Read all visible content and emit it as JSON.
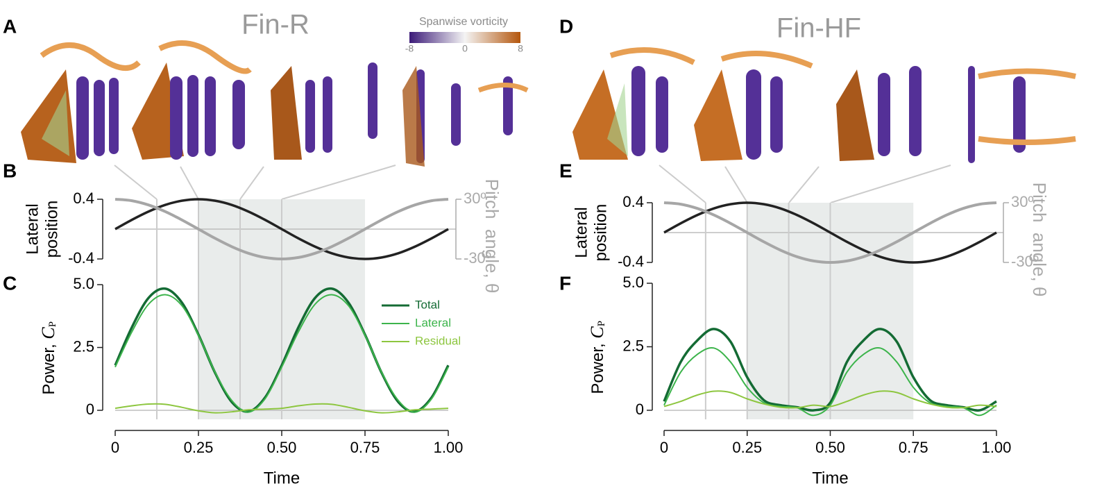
{
  "figure": {
    "panel_labels": [
      "A",
      "B",
      "C",
      "D",
      "E",
      "F"
    ],
    "titles": [
      "Fin-R",
      "Fin-HF"
    ],
    "colorbar": {
      "title": "Spanwise vorticity",
      "ticks": [
        -8,
        0,
        8
      ],
      "colors": [
        "#3b1a78",
        "#f4f4f4",
        "#b4560c"
      ]
    }
  },
  "chart_data": [
    {
      "type": "line",
      "x": [
        0,
        0.05,
        0.1,
        0.15,
        0.2,
        0.25,
        0.3,
        0.35,
        0.4,
        0.45,
        0.5,
        0.55,
        0.6,
        0.65,
        0.7,
        0.75,
        0.8,
        0.85,
        0.9,
        0.95,
        1
      ],
      "xlim": [
        0,
        1
      ],
      "ylabel": [
        "Lateral",
        "position"
      ],
      "y2label": "Pitch  angle, θ",
      "ylim": [
        -0.4,
        0.4
      ],
      "yticks": [
        0.4,
        -0.4
      ],
      "y2lim": [
        -30,
        30
      ],
      "y2ticks": [
        {
          "value": 30,
          "label": "30º"
        },
        {
          "value": -30,
          "label": "-30º"
        }
      ],
      "zero_line": true,
      "highlight_x": [
        0.25,
        0.75
      ],
      "vlines": [
        0.125,
        0.25,
        0.375,
        0.5
      ],
      "series": [
        {
          "color": "#222222",
          "values": [
            0,
            0.124,
            0.235,
            0.324,
            0.38,
            0.4,
            0.38,
            0.324,
            0.235,
            0.124,
            0,
            -0.124,
            -0.235,
            -0.324,
            -0.38,
            -0.4,
            -0.38,
            -0.324,
            -0.235,
            -0.124,
            0
          ]
        },
        {
          "color": "#a6a6a6",
          "axis": "y2",
          "values": [
            30,
            28.53,
            24.27,
            17.63,
            9.27,
            0,
            -9.27,
            -17.63,
            -24.27,
            -28.53,
            -30,
            -28.53,
            -24.27,
            -17.63,
            -9.27,
            0,
            9.27,
            17.63,
            24.27,
            28.53,
            30
          ]
        }
      ]
    },
    {
      "type": "line",
      "x": [
        0,
        0.05,
        0.1,
        0.15,
        0.2,
        0.25,
        0.3,
        0.35,
        0.4,
        0.45,
        0.5,
        0.55,
        0.6,
        0.65,
        0.7,
        0.75,
        0.8,
        0.85,
        0.9,
        0.95,
        1
      ],
      "xlabel": "Time",
      "xlim": [
        0,
        1
      ],
      "xticks": [
        0,
        0.25,
        {
          "value": 0.5,
          "label": "0.50"
        },
        0.75,
        {
          "value": 1,
          "label": "1.00"
        }
      ],
      "ylabel": [
        "Power, ",
        "C",
        "P"
      ],
      "ylim": [
        -0.4,
        5
      ],
      "yticks": [
        0,
        2.5,
        {
          "value": 5,
          "label": "5.0"
        }
      ],
      "zero_line": true,
      "highlight_x": [
        0.25,
        0.75
      ],
      "vlines": [
        0.125,
        0.25,
        0.375,
        0.5
      ],
      "legend": "upper right",
      "series": [
        {
          "name": "Total",
          "color": "#146b34",
          "values": [
            1.79,
            3.3,
            4.47,
            4.84,
            4.29,
            3.01,
            1.49,
            0.33,
            -0.05,
            0.51,
            1.79,
            3.3,
            4.47,
            4.84,
            4.29,
            3.01,
            1.49,
            0.33,
            -0.05,
            0.51,
            1.79
          ]
        },
        {
          "name": "Lateral",
          "color": "#3cb44b",
          "values": [
            1.72,
            3.12,
            4.22,
            4.6,
            4.17,
            2.99,
            1.51,
            0.39,
            -0.07,
            0.46,
            1.72,
            3.12,
            4.22,
            4.6,
            4.17,
            2.99,
            1.51,
            0.39,
            -0.07,
            0.46,
            1.72
          ]
        },
        {
          "name": "Residual",
          "color": "#8dc63f",
          "values": [
            0.08,
            0.18,
            0.25,
            0.24,
            0.12,
            -0.02,
            -0.1,
            -0.06,
            0.02,
            0.05,
            0.08,
            0.18,
            0.25,
            0.24,
            0.12,
            -0.02,
            -0.1,
            -0.06,
            0.02,
            0.05,
            0.08
          ]
        }
      ]
    },
    {
      "type": "line",
      "x": [
        0,
        0.05,
        0.1,
        0.15,
        0.2,
        0.25,
        0.3,
        0.35,
        0.4,
        0.45,
        0.5,
        0.55,
        0.6,
        0.65,
        0.7,
        0.75,
        0.8,
        0.85,
        0.9,
        0.95,
        1
      ],
      "xlim": [
        0,
        1
      ],
      "ylabel": [
        "Lateral",
        "position"
      ],
      "y2label": "Pitch  angle, θ",
      "ylim": [
        -0.4,
        0.4
      ],
      "yticks": [
        0.4,
        -0.4
      ],
      "y2lim": [
        -30,
        30
      ],
      "y2ticks": [
        {
          "value": 30,
          "label": "30º"
        },
        {
          "value": -30,
          "label": "-30º"
        }
      ],
      "zero_line": true,
      "highlight_x": [
        0.25,
        0.75
      ],
      "vlines": [
        0.125,
        0.25,
        0.375,
        0.5
      ],
      "series": [
        {
          "color": "#222222",
          "values": [
            0,
            0.124,
            0.235,
            0.324,
            0.38,
            0.4,
            0.38,
            0.324,
            0.235,
            0.124,
            0,
            -0.124,
            -0.235,
            -0.324,
            -0.38,
            -0.4,
            -0.38,
            -0.324,
            -0.235,
            -0.124,
            0
          ]
        },
        {
          "color": "#a6a6a6",
          "axis": "y2",
          "values": [
            30,
            28.53,
            24.27,
            17.63,
            9.27,
            0,
            -9.27,
            -17.63,
            -24.27,
            -28.53,
            -30,
            -28.53,
            -24.27,
            -17.63,
            -9.27,
            0,
            9.27,
            17.63,
            24.27,
            28.53,
            30
          ]
        }
      ]
    },
    {
      "type": "line",
      "x": [
        0,
        0.05,
        0.1,
        0.15,
        0.2,
        0.25,
        0.3,
        0.35,
        0.4,
        0.45,
        0.5,
        0.55,
        0.6,
        0.65,
        0.7,
        0.75,
        0.8,
        0.85,
        0.9,
        0.95,
        1
      ],
      "xlabel": "Time",
      "xlim": [
        0,
        1
      ],
      "xticks": [
        0,
        0.25,
        {
          "value": 0.5,
          "label": "0.50"
        },
        0.75,
        {
          "value": 1,
          "label": "1.00"
        }
      ],
      "ylabel": [
        "Power, ",
        "C",
        "P"
      ],
      "ylim": [
        -0.4,
        5
      ],
      "yticks": [
        0,
        2.5,
        {
          "value": 5,
          "label": "5.0"
        }
      ],
      "zero_line": true,
      "highlight_x": [
        0.25,
        0.75
      ],
      "vlines": [
        0.125,
        0.25,
        0.375,
        0.5
      ],
      "series": [
        {
          "color": "#146b34",
          "values": [
            0.35,
            1.9,
            2.75,
            3.2,
            2.7,
            1.3,
            0.4,
            0.2,
            0.12,
            0,
            0.3,
            1.9,
            2.75,
            3.2,
            2.7,
            1.3,
            0.4,
            0.2,
            0.12,
            0,
            0.35
          ]
        },
        {
          "color": "#3cb44b",
          "values": [
            0.2,
            1.5,
            2.2,
            2.45,
            1.9,
            0.9,
            0.3,
            0.15,
            0.1,
            -0.2,
            0.2,
            1.5,
            2.2,
            2.45,
            1.9,
            0.9,
            0.3,
            0.15,
            0.1,
            -0.2,
            0.2
          ]
        },
        {
          "color": "#8dc63f",
          "values": [
            0.15,
            0.35,
            0.6,
            0.75,
            0.7,
            0.45,
            0.25,
            0.12,
            0.1,
            0.2,
            0.15,
            0.35,
            0.6,
            0.75,
            0.7,
            0.45,
            0.25,
            0.12,
            0.1,
            0.2,
            0.15
          ]
        }
      ]
    }
  ]
}
